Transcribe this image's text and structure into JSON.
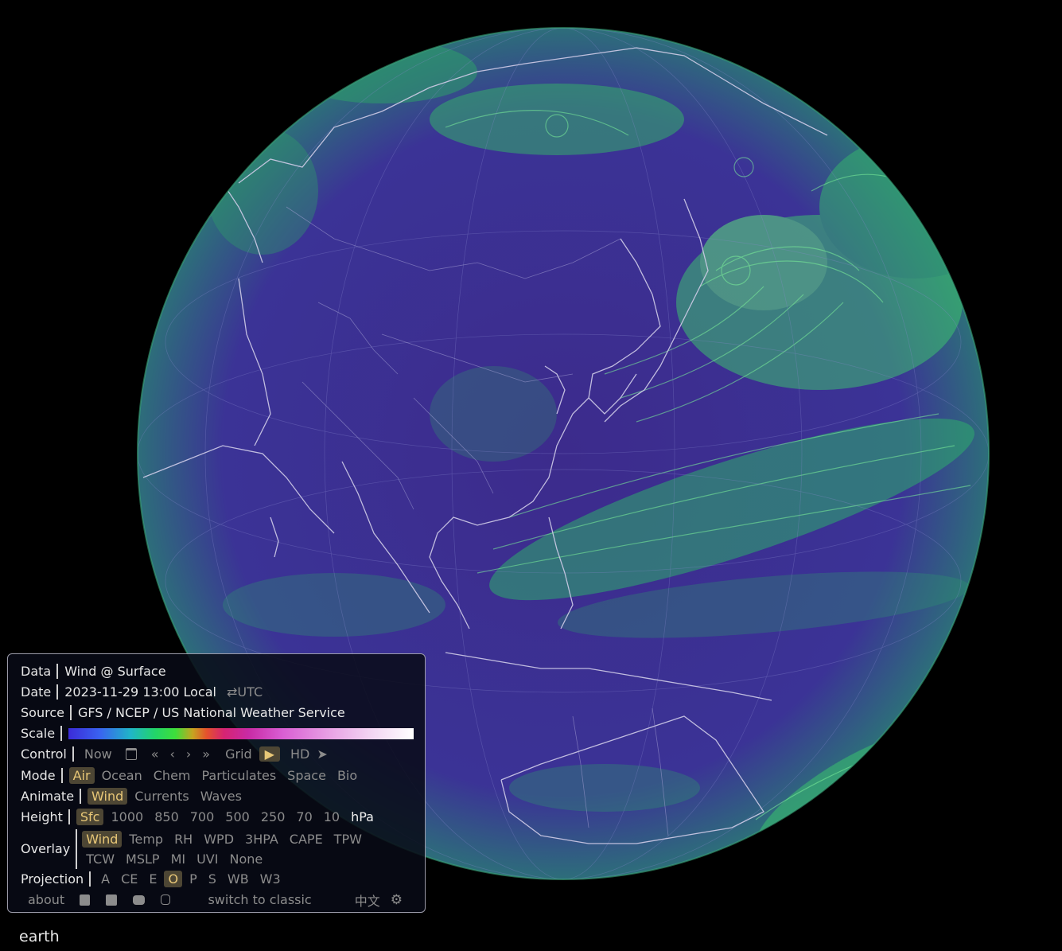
{
  "colors": {
    "ocean": "#3f2c8a",
    "land": "#3b2a87",
    "wind_fast": "#45e06a",
    "selected_bg": "#4d4634",
    "selected_text": "#e8c777",
    "panel_border": "#9a9aa8"
  },
  "map": {
    "projection": "orthographic",
    "center": "East Asia / Western Pacific"
  },
  "panel": {
    "data": {
      "label": "Data",
      "value": "Wind @ Surface"
    },
    "date": {
      "label": "Date",
      "value": "2023-11-29 13:00 Local",
      "toggle": "⇄UTC"
    },
    "source": {
      "label": "Source",
      "value": "GFS / NCEP / US National Weather Service"
    },
    "scale": {
      "label": "Scale"
    },
    "control": {
      "label": "Control",
      "now": "Now",
      "calendar_icon": "calendar-icon",
      "back_fast": "«",
      "back": "‹",
      "forward": "›",
      "forward_fast": "»",
      "grid": "Grid",
      "play": "▶",
      "hd": "HD",
      "locate": "➤"
    },
    "mode": {
      "label": "Mode",
      "options": [
        "Air",
        "Ocean",
        "Chem",
        "Particulates",
        "Space",
        "Bio"
      ],
      "selected": "Air"
    },
    "animate": {
      "label": "Animate",
      "options": [
        "Wind",
        "Currents",
        "Waves"
      ],
      "selected": "Wind"
    },
    "height": {
      "label": "Height",
      "options": [
        "Sfc",
        "1000",
        "850",
        "700",
        "500",
        "250",
        "70",
        "10"
      ],
      "unit": "hPa",
      "selected": "Sfc"
    },
    "overlay": {
      "label": "Overlay",
      "row1": [
        "Wind",
        "Temp",
        "RH",
        "WPD",
        "3HPA",
        "CAPE",
        "TPW"
      ],
      "row2": [
        "TCW",
        "MSLP",
        "MI",
        "UVI",
        "None"
      ],
      "selected": "Wind"
    },
    "projection": {
      "label": "Projection",
      "options": [
        "A",
        "CE",
        "E",
        "O",
        "P",
        "S",
        "WB",
        "W3"
      ],
      "selected": "O"
    },
    "footer": {
      "about": "about",
      "facebook_icon": "facebook-icon",
      "twitter_icon": "twitter-icon",
      "youtube_icon": "youtube-icon",
      "instagram_icon": "instagram-icon",
      "switch": "switch to classic",
      "lang": "中文",
      "settings_icon": "gear-icon"
    }
  },
  "brand": "earth"
}
